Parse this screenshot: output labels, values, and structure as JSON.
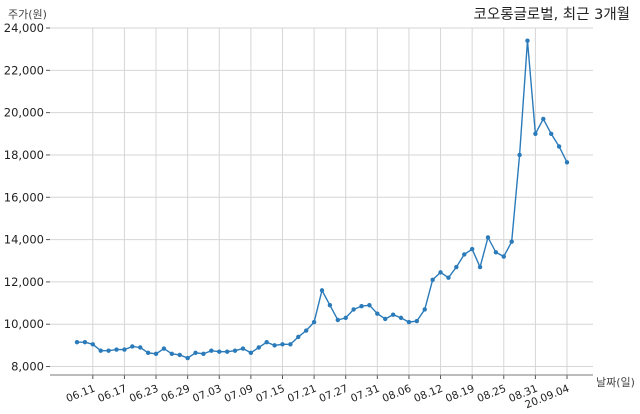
{
  "chart_data": {
    "type": "line",
    "title": "코오롱글로벌, 최근 3개월",
    "xlabel": "날짜(일)",
    "ylabel": "주가(원)",
    "ylim": [
      7600,
      24000
    ],
    "yticks": [
      8000,
      10000,
      12000,
      14000,
      16000,
      18000,
      20000,
      22000,
      24000
    ],
    "ytick_labels": [
      "8,000",
      "10,000",
      "12,000",
      "14,000",
      "16,000",
      "18,000",
      "20,000",
      "22,000",
      "24,000"
    ],
    "xticks": [
      {
        "label": "06.11",
        "index": 2
      },
      {
        "label": "06.17",
        "index": 6
      },
      {
        "label": "06.23",
        "index": 10
      },
      {
        "label": "06.29",
        "index": 14
      },
      {
        "label": "07.03",
        "index": 18
      },
      {
        "label": "07.09",
        "index": 22
      },
      {
        "label": "07.15",
        "index": 26
      },
      {
        "label": "07.21",
        "index": 30
      },
      {
        "label": "07.27",
        "index": 34
      },
      {
        "label": "07.31",
        "index": 38
      },
      {
        "label": "08.06",
        "index": 42
      },
      {
        "label": "08.12",
        "index": 46
      },
      {
        "label": "08.19",
        "index": 50
      },
      {
        "label": "08.25",
        "index": 54
      },
      {
        "label": "08.31",
        "index": 58
      },
      {
        "label": "20.09.04",
        "index": 62
      }
    ],
    "grid": true,
    "color": "#2b7bba",
    "series": [
      {
        "values": [
          9150,
          9150,
          9050,
          8750,
          8750,
          8800,
          8800,
          8950,
          8900,
          8650,
          8600,
          8850,
          8600,
          8550,
          8400,
          8650,
          8600,
          8750,
          8700,
          8700,
          8750,
          8850,
          8650,
          8900,
          9150,
          9000,
          9050,
          9050,
          9400,
          9700,
          10100,
          11600,
          10900,
          10200,
          10300,
          10700,
          10850,
          10900,
          10500,
          10250,
          10450,
          10300,
          10100,
          10150,
          10700,
          12100,
          12450,
          12200,
          12700,
          13300,
          13550,
          12700,
          14100,
          13400,
          13200,
          13900,
          18000,
          23400,
          19000,
          19700,
          19000,
          18400,
          17650
        ]
      }
    ]
  }
}
